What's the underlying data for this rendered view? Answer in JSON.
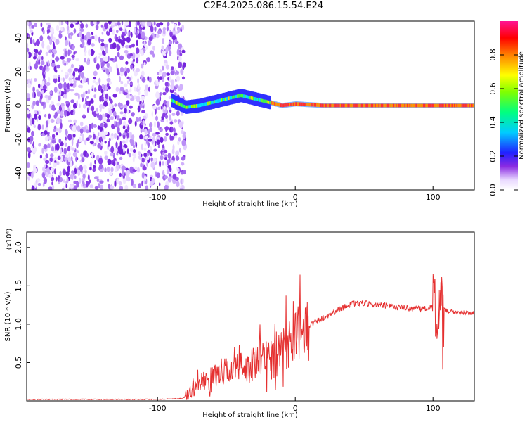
{
  "title": "C2E4.2025.086.15.54.E24",
  "colors": {
    "snr_line": "#e53030",
    "axis": "#000000",
    "background": "#ffffff"
  },
  "chart_data": [
    {
      "type": "heatmap",
      "xlabel": "Height of straight line (km)",
      "ylabel": "Frequency (Hz)",
      "xlim": [
        -195,
        130
      ],
      "ylim": [
        -50,
        50
      ],
      "xticks": [
        -100,
        0,
        100
      ],
      "yticks": [
        -40,
        -20,
        0,
        20,
        40
      ],
      "colorbar": {
        "label": "Normalized spectral amplitude",
        "range": [
          0,
          1
        ],
        "ticks": [
          "0.0",
          "0.2",
          "0.4",
          "0.6",
          "0.8"
        ]
      },
      "signal_track": {
        "x": [
          -90,
          -80,
          -70,
          -60,
          -50,
          -40,
          -30,
          -20,
          -10,
          0,
          20,
          60,
          100,
          105,
          130
        ],
        "freq": [
          3,
          -1,
          0,
          2,
          4,
          6,
          4,
          2,
          0,
          1,
          0,
          0,
          0,
          0,
          0
        ]
      },
      "noise_region_x": [
        -195,
        -80
      ]
    },
    {
      "type": "line",
      "xlabel": "Height of straight line (km)",
      "ylabel": "SNR (10 * v/v)",
      "y_multiplier": "(x10⁴)",
      "xlim": [
        -195,
        130
      ],
      "ylim": [
        0,
        2.2
      ],
      "xticks": [
        -100,
        0,
        100
      ],
      "yticks": [
        "0.5",
        "1.0",
        "1.5",
        "2.0"
      ],
      "x": [
        -195,
        -150,
        -100,
        -82,
        -78,
        -70,
        -60,
        -50,
        -40,
        -30,
        -20,
        -10,
        0,
        10,
        20,
        30,
        40,
        50,
        60,
        70,
        80,
        90,
        100,
        103,
        105,
        107,
        110,
        120,
        130
      ],
      "y": [
        0.02,
        0.02,
        0.02,
        0.03,
        0.08,
        0.22,
        0.3,
        0.38,
        0.42,
        0.45,
        0.55,
        0.6,
        0.85,
        0.98,
        1.08,
        1.18,
        1.26,
        1.27,
        1.25,
        1.23,
        1.21,
        1.2,
        1.21,
        1.25,
        1.18,
        1.2,
        1.17,
        1.15,
        1.14
      ]
    }
  ]
}
